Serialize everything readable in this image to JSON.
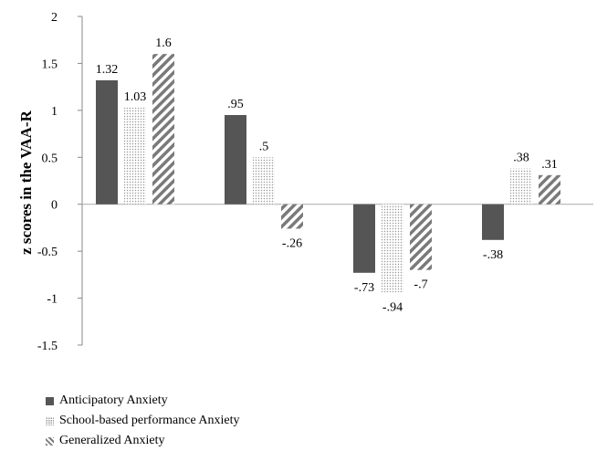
{
  "chart_data": {
    "type": "bar",
    "categories": [
      "",
      "",
      "",
      ""
    ],
    "series": [
      {
        "name": "Anticipatory Anxiety",
        "values": [
          1.32,
          0.95,
          -0.73,
          -0.38
        ],
        "labels": [
          "1.32",
          ".95",
          "-.73",
          "-.38"
        ],
        "pattern": "solid",
        "color": "#555555"
      },
      {
        "name": "School-based performance Anxiety",
        "values": [
          1.03,
          0.5,
          -0.94,
          0.38
        ],
        "labels": [
          "1.03",
          ".5",
          "-.94",
          ".38"
        ],
        "pattern": "dots",
        "color": "#9a9a9a"
      },
      {
        "name": "Generalized Anxiety",
        "values": [
          1.6,
          -0.26,
          -0.7,
          0.31
        ],
        "labels": [
          "1.6",
          "-.26",
          "-.7",
          ".31"
        ],
        "pattern": "diagonal-stripes",
        "color": "#7a7a7a"
      }
    ],
    "ylabel": "z scores in the VAA-R",
    "xlabel": "",
    "ylim": [
      -1.5,
      2
    ],
    "yticks": [
      -1.5,
      -1,
      -0.5,
      0,
      0.5,
      1,
      1.5,
      2
    ],
    "ytick_labels": [
      "-1.5",
      "-1",
      "-0.5",
      "0",
      "0.5",
      "1",
      "1.5",
      "2"
    ],
    "grid": false,
    "legend_position": "bottom-left"
  }
}
